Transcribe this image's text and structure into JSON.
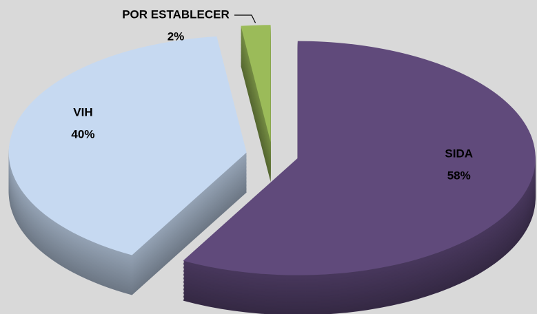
{
  "chart_data": {
    "type": "pie",
    "categories": [
      "SIDA",
      "VIH",
      "POR ESTABLECER"
    ],
    "values": [
      58,
      40,
      2
    ],
    "value_labels": [
      "58%",
      "40%",
      "2%"
    ],
    "colors": [
      "#604a7b",
      "#c6d9f1",
      "#9bbb59"
    ]
  }
}
